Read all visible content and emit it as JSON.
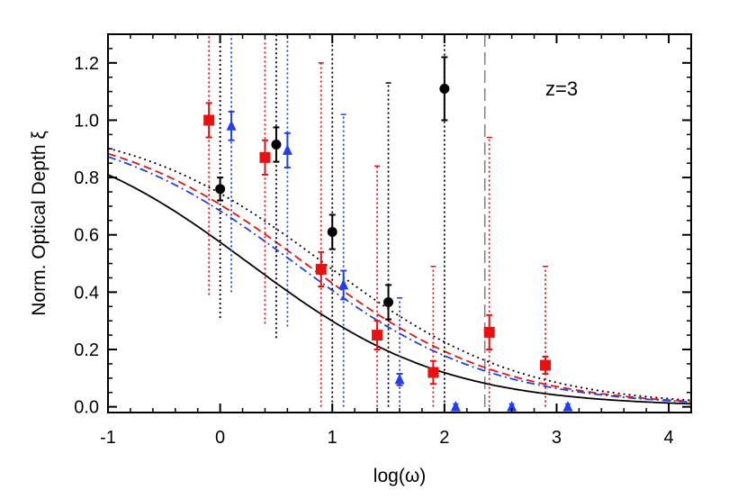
{
  "chart_data": {
    "type": "scatter",
    "title": "",
    "xlabel": "log(ω)",
    "ylabel": "Norm. Optical Depth ξ",
    "annotation": "z=3",
    "xlim": [
      -1,
      4.2
    ],
    "ylim": [
      -0.02,
      1.3
    ],
    "x_ticks": [
      -1,
      0,
      1,
      2,
      3,
      4
    ],
    "x_tick_labels": [
      "-1",
      "0",
      "1",
      "2",
      "3",
      "4"
    ],
    "y_ticks": [
      0.0,
      0.2,
      0.4,
      0.6,
      0.8,
      1.0,
      1.2
    ],
    "y_tick_labels": [
      "0.0",
      "0.2",
      "0.4",
      "0.6",
      "0.8",
      "1.0",
      "1.2"
    ],
    "grid": false,
    "vertical_marker": {
      "x": 2.36,
      "style": "long-dash",
      "color": "#808080"
    },
    "series": [
      {
        "color": "#000000",
        "marker": "circle",
        "points": [
          {
            "x": 0.0,
            "y": 0.76,
            "err_lo": 0.04,
            "err_hi": 0.04,
            "sys_lo": 0.31,
            "sys_hi": 1.3
          },
          {
            "x": 0.5,
            "y": 0.915,
            "err_lo": 0.06,
            "err_hi": 0.06,
            "sys_lo": 0.24,
            "sys_hi": 1.3
          },
          {
            "x": 1.0,
            "y": 0.61,
            "err_lo": 0.06,
            "err_hi": 0.06,
            "sys_lo": 0.0,
            "sys_hi": 1.3
          },
          {
            "x": 1.5,
            "y": 0.365,
            "err_lo": 0.06,
            "err_hi": 0.06,
            "sys_lo": 0.0,
            "sys_hi": 1.13
          },
          {
            "x": 2.0,
            "y": 1.11,
            "err_lo": 0.11,
            "err_hi": 0.11,
            "sys_lo": 0.0,
            "sys_hi": 1.3
          }
        ]
      },
      {
        "color": "#e81010",
        "marker": "square",
        "points": [
          {
            "x": -0.1,
            "y": 1.0,
            "err_lo": 0.06,
            "err_hi": 0.06,
            "sys_lo": 0.39,
            "sys_hi": 1.3
          },
          {
            "x": 0.4,
            "y": 0.87,
            "err_lo": 0.06,
            "err_hi": 0.06,
            "sys_lo": 0.29,
            "sys_hi": 1.3
          },
          {
            "x": 0.9,
            "y": 0.48,
            "err_lo": 0.06,
            "err_hi": 0.06,
            "sys_lo": 0.0,
            "sys_hi": 1.2
          },
          {
            "x": 1.4,
            "y": 0.25,
            "err_lo": 0.05,
            "err_hi": 0.05,
            "sys_lo": 0.0,
            "sys_hi": 0.84
          },
          {
            "x": 1.9,
            "y": 0.12,
            "err_lo": 0.04,
            "err_hi": 0.04,
            "sys_lo": 0.0,
            "sys_hi": 0.49
          },
          {
            "x": 2.4,
            "y": 0.26,
            "err_lo": 0.06,
            "err_hi": 0.06,
            "sys_lo": 0.0,
            "sys_hi": 0.94
          },
          {
            "x": 2.9,
            "y": 0.145,
            "err_lo": 0.03,
            "err_hi": 0.03,
            "sys_lo": 0.0,
            "sys_hi": 0.49
          }
        ]
      },
      {
        "color": "#1f3ff0",
        "marker": "triangle",
        "points": [
          {
            "x": 0.1,
            "y": 0.98,
            "err_lo": 0.05,
            "err_hi": 0.05,
            "sys_lo": 0.4,
            "sys_hi": 1.3
          },
          {
            "x": 0.6,
            "y": 0.895,
            "err_lo": 0.06,
            "err_hi": 0.06,
            "sys_lo": 0.28,
            "sys_hi": 1.3
          },
          {
            "x": 1.1,
            "y": 0.425,
            "err_lo": 0.05,
            "err_hi": 0.05,
            "sys_lo": 0.0,
            "sys_hi": 1.02
          },
          {
            "x": 1.6,
            "y": 0.095,
            "err_lo": 0.02,
            "err_hi": 0.02,
            "sys_lo": 0.0,
            "sys_hi": 0.38
          },
          {
            "x": 2.1,
            "y": 0.0,
            "err_lo": 0.0,
            "err_hi": 0.0,
            "sys_lo": 0.0,
            "sys_hi": 0.01
          },
          {
            "x": 2.6,
            "y": 0.0,
            "err_lo": 0.0,
            "err_hi": 0.0,
            "sys_lo": 0.0,
            "sys_hi": 0.01
          },
          {
            "x": 3.1,
            "y": 0.0,
            "err_lo": 0.0,
            "err_hi": 0.0,
            "sys_lo": 0.0,
            "sys_hi": 0.01
          }
        ]
      }
    ],
    "model_curves": [
      {
        "color": "#000000",
        "style": "solid",
        "x0": 0.26,
        "k": 1.15
      },
      {
        "color": "#000000",
        "style": "dotted",
        "x0": 0.93,
        "k": 1.15
      },
      {
        "color": "#e81010",
        "style": "dashed",
        "x0": 0.76,
        "k": 1.15
      },
      {
        "color": "#1f3ff0",
        "style": "dash-dot",
        "x0": 0.67,
        "k": 1.15
      }
    ]
  }
}
